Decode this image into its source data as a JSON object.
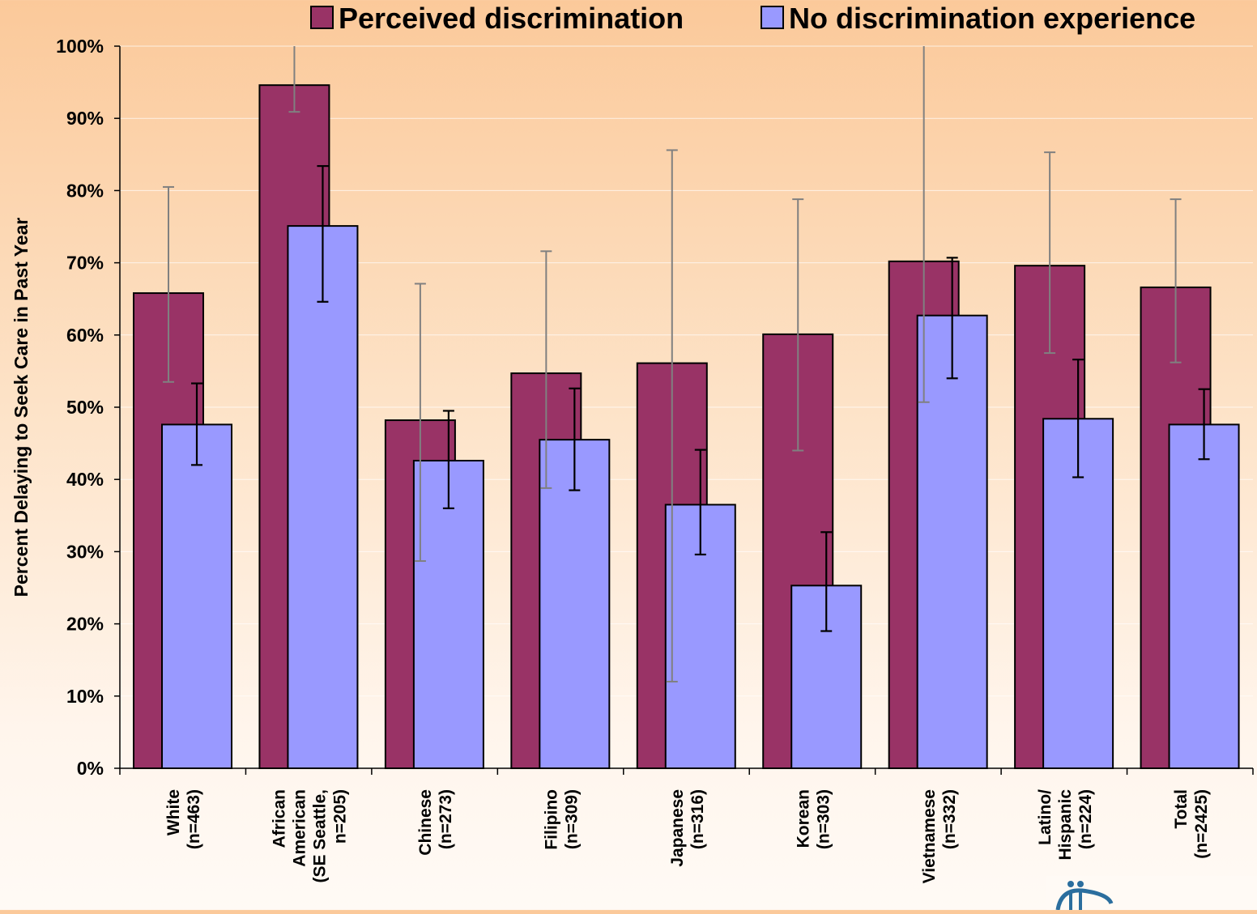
{
  "chart_data": {
    "type": "bar",
    "title": "",
    "xlabel": "",
    "ylabel": "Percent Delaying to Seek Care in Past Year",
    "ylim": [
      0,
      100
    ],
    "yticks": [
      "0%",
      "10%",
      "20%",
      "30%",
      "40%",
      "50%",
      "60%",
      "70%",
      "80%",
      "90%",
      "100%"
    ],
    "grid": true,
    "legend_position": "top",
    "categories": [
      [
        "White",
        "(n=463)"
      ],
      [
        "African",
        "American",
        "(SE Seattle,",
        "n=205)"
      ],
      [
        "Chinese",
        "(n=273)"
      ],
      [
        "Filipino",
        "(n=309)"
      ],
      [
        "Japanese",
        "(n=316)"
      ],
      [
        "Korean",
        "(n=303)"
      ],
      [
        "Vietnamese",
        "(n=332)"
      ],
      [
        "Latino/",
        "Hispanic",
        "(n=224)"
      ],
      [
        "Total",
        "(n=2425)"
      ]
    ],
    "series": [
      {
        "name": "Perceived discrimination",
        "color": "#993366",
        "errorbar_color": "#808080",
        "values": [
          65.8,
          94.6,
          48.2,
          54.7,
          56.1,
          60.1,
          70.2,
          69.6,
          66.6
        ],
        "error_low": [
          53.5,
          90.9,
          28.7,
          38.8,
          12.0,
          44.0,
          50.7,
          57.5,
          56.2
        ],
        "error_high": [
          80.5,
          101,
          67.1,
          71.6,
          85.6,
          78.8,
          101,
          85.3,
          78.8
        ]
      },
      {
        "name": "No discrimination experience",
        "color": "#9999ff",
        "errorbar_color": "#000000",
        "values": [
          47.6,
          75.1,
          42.6,
          45.5,
          36.5,
          25.3,
          62.7,
          48.4,
          47.6
        ],
        "error_low": [
          42.0,
          64.6,
          36.0,
          38.5,
          29.6,
          19.0,
          54.0,
          40.3,
          42.8
        ],
        "error_high": [
          53.3,
          83.4,
          49.5,
          52.6,
          44.1,
          32.7,
          70.7,
          56.6,
          52.5
        ]
      }
    ]
  }
}
